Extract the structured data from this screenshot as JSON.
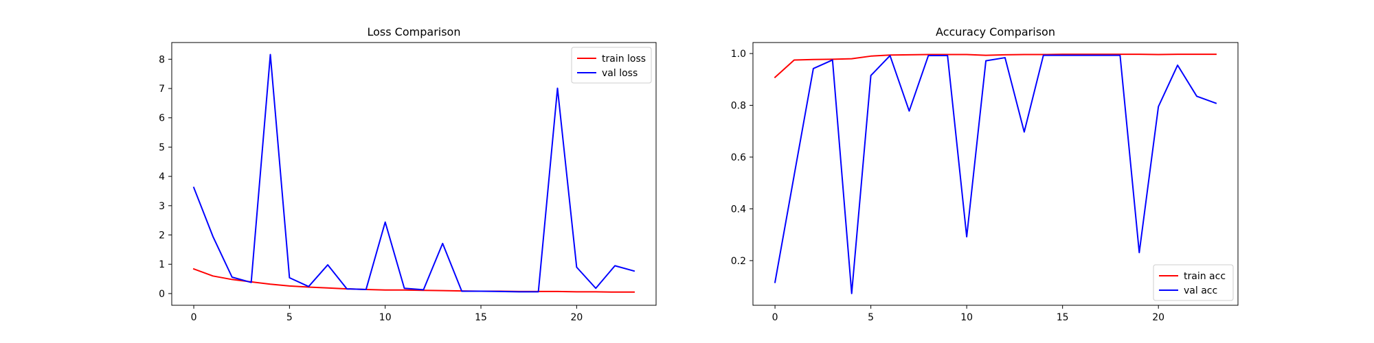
{
  "chart_data": [
    {
      "type": "line",
      "title": "Loss Comparison",
      "xlabel": "",
      "ylabel": "",
      "xlim": [
        -1.15,
        24.15
      ],
      "ylim": [
        -0.4,
        8.57
      ],
      "xticks": [
        0,
        5,
        10,
        15,
        20
      ],
      "yticks": [
        0,
        1,
        2,
        3,
        4,
        5,
        6,
        7,
        8
      ],
      "grid": false,
      "legend_position": "top-right",
      "x": [
        0,
        1,
        2,
        3,
        4,
        5,
        6,
        7,
        8,
        9,
        10,
        11,
        12,
        13,
        14,
        15,
        16,
        17,
        18,
        19,
        20,
        21,
        22,
        23
      ],
      "series": [
        {
          "name": "train loss",
          "color": "#ff0000",
          "values": [
            0.84,
            0.6,
            0.48,
            0.4,
            0.32,
            0.26,
            0.22,
            0.19,
            0.16,
            0.14,
            0.12,
            0.12,
            0.11,
            0.1,
            0.09,
            0.08,
            0.08,
            0.07,
            0.07,
            0.07,
            0.06,
            0.06,
            0.05,
            0.05
          ]
        },
        {
          "name": "val loss",
          "color": "#0000ff",
          "values": [
            3.62,
            1.95,
            0.56,
            0.38,
            8.16,
            0.54,
            0.24,
            0.98,
            0.16,
            0.14,
            2.44,
            0.18,
            0.13,
            1.71,
            0.08,
            0.08,
            0.07,
            0.06,
            0.06,
            7.01,
            0.9,
            0.18,
            0.95,
            0.77
          ]
        }
      ]
    },
    {
      "type": "line",
      "title": "Accuracy Comparison",
      "xlabel": "",
      "ylabel": "",
      "xlim": [
        -1.15,
        24.15
      ],
      "ylim": [
        0.0275,
        1.0425
      ],
      "xticks": [
        0,
        5,
        10,
        15,
        20
      ],
      "yticks": [
        0.2,
        0.4,
        0.6,
        0.8,
        1.0
      ],
      "ytick_labels": [
        "0.2",
        "0.4",
        "0.6",
        "0.8",
        "1.0"
      ],
      "grid": false,
      "legend_position": "bottom-right",
      "x": [
        0,
        1,
        2,
        3,
        4,
        5,
        6,
        7,
        8,
        9,
        10,
        11,
        12,
        13,
        14,
        15,
        16,
        17,
        18,
        19,
        20,
        21,
        22,
        23
      ],
      "series": [
        {
          "name": "train acc",
          "color": "#ff0000",
          "values": [
            0.908,
            0.975,
            0.977,
            0.978,
            0.98,
            0.99,
            0.994,
            0.995,
            0.996,
            0.996,
            0.996,
            0.993,
            0.995,
            0.996,
            0.996,
            0.997,
            0.997,
            0.997,
            0.997,
            0.997,
            0.996,
            0.997,
            0.997,
            0.997
          ]
        },
        {
          "name": "val acc",
          "color": "#0000ff",
          "values": [
            0.116,
            0.53,
            0.942,
            0.975,
            0.073,
            0.915,
            0.992,
            0.778,
            0.992,
            0.992,
            0.292,
            0.972,
            0.984,
            0.697,
            0.993,
            0.993,
            0.993,
            0.993,
            0.993,
            0.231,
            0.795,
            0.955,
            0.835,
            0.808
          ]
        }
      ]
    }
  ]
}
